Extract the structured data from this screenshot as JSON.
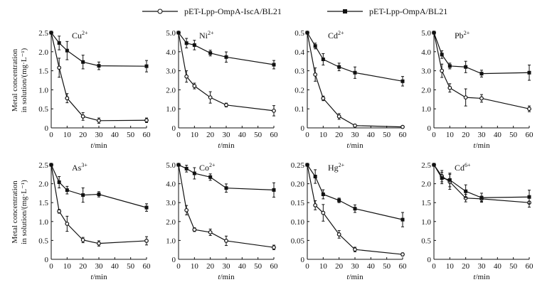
{
  "chart_data": {
    "type": "line",
    "legend": {
      "placement": "top-center",
      "entries": [
        {
          "name": "pET-Lpp-OmpA-IscA/BL21",
          "marker": "open-circle"
        },
        {
          "name": "pET-Lpp-OmpA/BL21",
          "marker": "filled-square"
        }
      ]
    },
    "ylabel_line1": "Metal concentration",
    "ylabel_line2": "in solution/(mg·L⁻¹)",
    "xlabel_italic": "t",
    "xlabel_rest": "/min",
    "x": [
      0,
      5,
      10,
      20,
      30,
      60
    ],
    "xticks": [
      0,
      10,
      20,
      30,
      40,
      50,
      60
    ],
    "xlim": [
      0,
      60
    ],
    "panels": [
      {
        "ion": "Cu",
        "charge": "2+",
        "ylim": [
          0,
          2.5
        ],
        "yticks": [
          "0",
          "0.5",
          "1.0",
          "1.5",
          "2.0",
          "2.5"
        ],
        "series": [
          {
            "name": "pET-Lpp-OmpA-IscA/BL21",
            "values": [
              2.5,
              1.58,
              0.78,
              0.3,
              0.19,
              0.2
            ],
            "err": [
              0,
              0.25,
              0.12,
              0.1,
              0.07,
              0.06
            ]
          },
          {
            "name": "pET-Lpp-OmpA/BL21",
            "values": [
              2.5,
              2.23,
              2.03,
              1.73,
              1.63,
              1.62
            ],
            "err": [
              0,
              0.18,
              0.24,
              0.18,
              0.1,
              0.15
            ]
          }
        ]
      },
      {
        "ion": "Ni",
        "charge": "2+",
        "ylim": [
          0,
          5
        ],
        "yticks": [
          "0",
          "1.0",
          "2.0",
          "3.0",
          "4.0",
          "5.0"
        ],
        "series": [
          {
            "name": "pET-Lpp-OmpA-IscA/BL21",
            "values": [
              5,
              2.7,
              2.2,
              1.6,
              1.2,
              0.9
            ],
            "err": [
              0,
              0.3,
              0.15,
              0.3,
              0.1,
              0.27
            ]
          },
          {
            "name": "pET-Lpp-OmpA/BL21",
            "values": [
              5,
              4.45,
              4.35,
              3.93,
              3.72,
              3.32
            ],
            "err": [
              0,
              0.25,
              0.25,
              0.15,
              0.27,
              0.22
            ]
          }
        ]
      },
      {
        "ion": "Cd",
        "charge": "2+",
        "ylim": [
          0,
          0.5
        ],
        "yticks": [
          "0",
          "0.1",
          "0.2",
          "0.3",
          "0.4",
          "0.5"
        ],
        "series": [
          {
            "name": "pET-Lpp-OmpA-IscA/BL21",
            "values": [
              0.5,
              0.28,
              0.155,
              0.06,
              0.012,
              0.005
            ],
            "err": [
              0,
              0.035,
              0.012,
              0.015,
              0.005,
              0.003
            ]
          },
          {
            "name": "pET-Lpp-OmpA/BL21",
            "values": [
              0.5,
              0.43,
              0.36,
              0.32,
              0.29,
              0.245
            ],
            "err": [
              0,
              0.015,
              0.03,
              0.02,
              0.03,
              0.025
            ]
          }
        ]
      },
      {
        "ion": "Pb",
        "charge": "2+",
        "ylim": [
          0,
          5
        ],
        "yticks": [
          "0",
          "1.0",
          "2.0",
          "3.0",
          "4.0",
          "5.0"
        ],
        "series": [
          {
            "name": "pET-Lpp-OmpA-IscA/BL21",
            "values": [
              5,
              3.0,
              2.1,
              1.6,
              1.55,
              1.0
            ],
            "err": [
              0,
              0.35,
              0.22,
              0.45,
              0.2,
              0.15
            ]
          },
          {
            "name": "pET-Lpp-OmpA/BL21",
            "values": [
              5,
              3.85,
              3.25,
              3.2,
              2.85,
              2.9
            ],
            "err": [
              0,
              0.2,
              0.15,
              0.3,
              0.18,
              0.4
            ]
          }
        ]
      },
      {
        "ion": "As",
        "charge": "3+",
        "ylim": [
          0,
          2.5
        ],
        "yticks": [
          "0",
          "0.5",
          "1.0",
          "1.5",
          "2.0",
          "2.5"
        ],
        "series": [
          {
            "name": "pET-Lpp-OmpA-IscA/BL21",
            "values": [
              2.5,
              1.27,
              0.94,
              0.51,
              0.42,
              0.49
            ],
            "err": [
              0,
              0.05,
              0.2,
              0.07,
              0.07,
              0.11
            ]
          },
          {
            "name": "pET-Lpp-OmpA/BL21",
            "values": [
              2.5,
              2.04,
              1.83,
              1.7,
              1.72,
              1.37
            ],
            "err": [
              0,
              0.15,
              0.1,
              0.19,
              0.07,
              0.1
            ]
          }
        ]
      },
      {
        "ion": "Co",
        "charge": "2+",
        "ylim": [
          0,
          5
        ],
        "yticks": [
          "0",
          "1.0",
          "2.0",
          "3.0",
          "4.0",
          "5.0"
        ],
        "series": [
          {
            "name": "pET-Lpp-OmpA-IscA/BL21",
            "values": [
              5,
              2.6,
              1.57,
              1.43,
              0.98,
              0.63
            ],
            "err": [
              0,
              0.25,
              0.1,
              0.17,
              0.25,
              0.12
            ]
          },
          {
            "name": "pET-Lpp-OmpA/BL21",
            "values": [
              5,
              4.8,
              4.55,
              4.35,
              3.77,
              3.67
            ],
            "err": [
              0,
              0.18,
              0.3,
              0.17,
              0.22,
              0.38
            ]
          }
        ]
      },
      {
        "ion": "Hg",
        "charge": "2+",
        "ylim": [
          0,
          0.25
        ],
        "yticks": [
          "0",
          "0.05",
          "0.10",
          "0.15",
          "0.20",
          "0.25"
        ],
        "series": [
          {
            "name": "pET-Lpp-OmpA-IscA/BL21",
            "values": [
              0.25,
              0.143,
              0.123,
              0.066,
              0.026,
              0.013
            ],
            "err": [
              0,
              0.012,
              0.022,
              0.01,
              0.006,
              0.004
            ]
          },
          {
            "name": "pET-Lpp-OmpA/BL21",
            "values": [
              0.25,
              0.219,
              0.172,
              0.156,
              0.134,
              0.105
            ],
            "err": [
              0,
              0.018,
              0.012,
              0.006,
              0.01,
              0.019
            ]
          }
        ]
      },
      {
        "ion": "Cd",
        "charge": "6+",
        "ylim": [
          0,
          2.5
        ],
        "yticks": [
          "0",
          "0.5",
          "1.0",
          "1.5",
          "2.0",
          "2.5"
        ],
        "series": [
          {
            "name": "pET-Lpp-OmpA-IscA/BL21",
            "values": [
              2.5,
              2.2,
              2.05,
              1.62,
              1.6,
              1.5
            ],
            "err": [
              0,
              0.15,
              0.2,
              0.1,
              0.07,
              0.12
            ]
          },
          {
            "name": "pET-Lpp-OmpA/BL21",
            "values": [
              2.5,
              2.15,
              2.1,
              1.8,
              1.63,
              1.65
            ],
            "err": [
              0,
              0.15,
              0.18,
              0.17,
              0.12,
              0.18
            ]
          }
        ]
      }
    ]
  }
}
